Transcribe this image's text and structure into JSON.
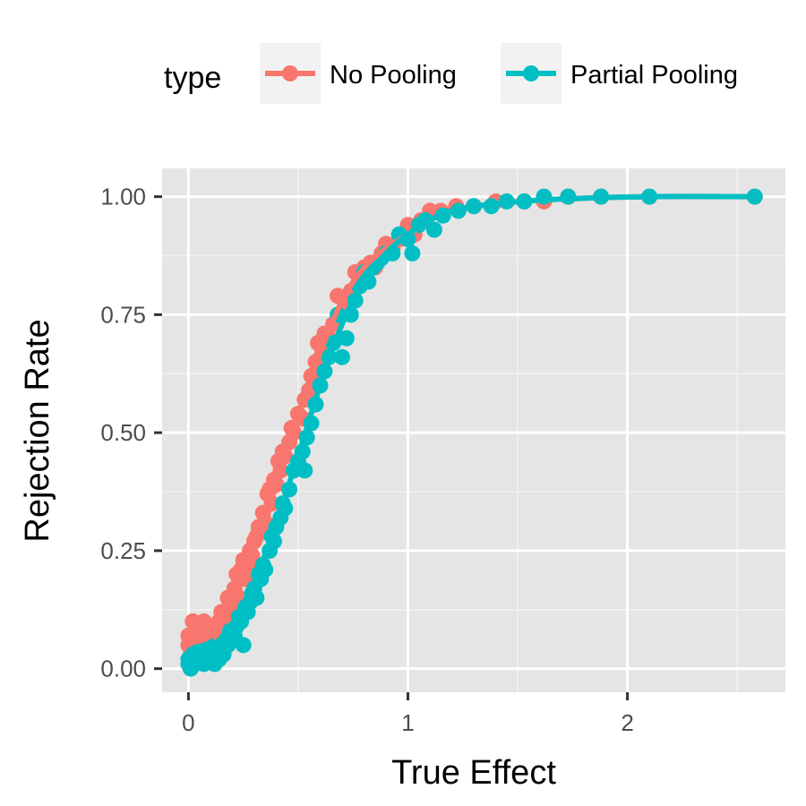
{
  "chart_data": {
    "type": "scatter",
    "xlabel": "True Effect",
    "ylabel": "Rejection Rate",
    "xlim": [
      -0.12,
      2.72
    ],
    "ylim": [
      -0.05,
      1.06
    ],
    "xticks": [
      0,
      1,
      2
    ],
    "xtick_labels": [
      "0",
      "1",
      "2"
    ],
    "yticks": [
      0,
      0.25,
      0.5,
      0.75,
      1
    ],
    "ytick_labels": [
      "0.00",
      "0.25",
      "0.50",
      "0.75",
      "1.00"
    ],
    "grid": true,
    "legend": {
      "title": "type",
      "position": "top",
      "entries": [
        "No Pooling",
        "Partial Pooling"
      ]
    },
    "series": [
      {
        "name": "No Pooling",
        "color": "#F8766D",
        "points": [
          [
            0,
            0.05
          ],
          [
            0,
            0.07
          ],
          [
            0.01,
            0.03
          ],
          [
            0.02,
            0.06
          ],
          [
            0.02,
            0.1
          ],
          [
            0.03,
            0.04
          ],
          [
            0.04,
            0.08
          ],
          [
            0.05,
            0.07
          ],
          [
            0.06,
            0.05
          ],
          [
            0.07,
            0.1
          ],
          [
            0.08,
            0.06
          ],
          [
            0.09,
            0.08
          ],
          [
            0.1,
            0.09
          ],
          [
            0.11,
            0.05
          ],
          [
            0.12,
            0.08
          ],
          [
            0.13,
            0.07
          ],
          [
            0.14,
            0.1
          ],
          [
            0.15,
            0.12
          ],
          [
            0.17,
            0.11
          ],
          [
            0.18,
            0.15
          ],
          [
            0.19,
            0.13
          ],
          [
            0.2,
            0.12
          ],
          [
            0.21,
            0.17
          ],
          [
            0.22,
            0.2
          ],
          [
            0.23,
            0.15
          ],
          [
            0.24,
            0.21
          ],
          [
            0.25,
            0.23
          ],
          [
            0.26,
            0.19
          ],
          [
            0.27,
            0.22
          ],
          [
            0.28,
            0.25
          ],
          [
            0.29,
            0.24
          ],
          [
            0.3,
            0.27
          ],
          [
            0.31,
            0.28
          ],
          [
            0.32,
            0.3
          ],
          [
            0.33,
            0.29
          ],
          [
            0.34,
            0.33
          ],
          [
            0.35,
            0.31
          ],
          [
            0.36,
            0.37
          ],
          [
            0.37,
            0.38
          ],
          [
            0.38,
            0.35
          ],
          [
            0.39,
            0.4
          ],
          [
            0.4,
            0.39
          ],
          [
            0.41,
            0.44
          ],
          [
            0.42,
            0.42
          ],
          [
            0.43,
            0.46
          ],
          [
            0.44,
            0.45
          ],
          [
            0.46,
            0.48
          ],
          [
            0.47,
            0.51
          ],
          [
            0.48,
            0.5
          ],
          [
            0.5,
            0.54
          ],
          [
            0.52,
            0.53
          ],
          [
            0.53,
            0.57
          ],
          [
            0.55,
            0.59
          ],
          [
            0.56,
            0.62
          ],
          [
            0.58,
            0.65
          ],
          [
            0.59,
            0.69
          ],
          [
            0.61,
            0.67
          ],
          [
            0.62,
            0.71
          ],
          [
            0.64,
            0.7
          ],
          [
            0.66,
            0.73
          ],
          [
            0.68,
            0.79
          ],
          [
            0.7,
            0.75
          ],
          [
            0.72,
            0.78
          ],
          [
            0.74,
            0.8
          ],
          [
            0.76,
            0.84
          ],
          [
            0.78,
            0.82
          ],
          [
            0.8,
            0.85
          ],
          [
            0.83,
            0.86
          ],
          [
            0.85,
            0.85
          ],
          [
            0.88,
            0.88
          ],
          [
            0.9,
            0.9
          ],
          [
            0.93,
            0.89
          ],
          [
            0.96,
            0.91
          ],
          [
            1,
            0.94
          ],
          [
            1.03,
            0.92
          ],
          [
            1.06,
            0.95
          ],
          [
            1.1,
            0.97
          ],
          [
            1.15,
            0.97
          ],
          [
            1.22,
            0.98
          ],
          [
            1.3,
            0.98
          ],
          [
            1.4,
            0.99
          ],
          [
            1.53,
            0.99
          ],
          [
            1.62,
            0.99
          ],
          [
            1.73,
            1
          ],
          [
            1.88,
            1
          ],
          [
            2.1,
            1
          ],
          [
            2.58,
            1
          ]
        ]
      },
      {
        "name": "Partial Pooling",
        "color": "#00BFC4",
        "points": [
          [
            0,
            0.01
          ],
          [
            0,
            0.02
          ],
          [
            0.01,
            0
          ],
          [
            0.02,
            0.03
          ],
          [
            0.03,
            0.01
          ],
          [
            0.04,
            0.02
          ],
          [
            0.05,
            0.04
          ],
          [
            0.06,
            0.02
          ],
          [
            0.07,
            0.01
          ],
          [
            0.08,
            0.03
          ],
          [
            0.09,
            0.05
          ],
          [
            0.1,
            0.02
          ],
          [
            0.11,
            0.03
          ],
          [
            0.12,
            0.01
          ],
          [
            0.13,
            0.04
          ],
          [
            0.14,
            0.02
          ],
          [
            0.15,
            0.05
          ],
          [
            0.16,
            0.03
          ],
          [
            0.17,
            0.06
          ],
          [
            0.18,
            0.05
          ],
          [
            0.19,
            0.08
          ],
          [
            0.2,
            0.06
          ],
          [
            0.21,
            0.07
          ],
          [
            0.22,
            0.09
          ],
          [
            0.23,
            0.11
          ],
          [
            0.24,
            0.1
          ],
          [
            0.25,
            0.05
          ],
          [
            0.26,
            0.13
          ],
          [
            0.27,
            0.12
          ],
          [
            0.28,
            0.14
          ],
          [
            0.29,
            0.16
          ],
          [
            0.3,
            0.17
          ],
          [
            0.31,
            0.15
          ],
          [
            0.32,
            0.2
          ],
          [
            0.33,
            0.19
          ],
          [
            0.34,
            0.22
          ],
          [
            0.35,
            0.21
          ],
          [
            0.37,
            0.25
          ],
          [
            0.38,
            0.28
          ],
          [
            0.39,
            0.27
          ],
          [
            0.4,
            0.3
          ],
          [
            0.42,
            0.32
          ],
          [
            0.43,
            0.35
          ],
          [
            0.44,
            0.34
          ],
          [
            0.46,
            0.38
          ],
          [
            0.48,
            0.42
          ],
          [
            0.5,
            0.44
          ],
          [
            0.52,
            0.46
          ],
          [
            0.53,
            0.42
          ],
          [
            0.54,
            0.49
          ],
          [
            0.56,
            0.52
          ],
          [
            0.58,
            0.56
          ],
          [
            0.6,
            0.6
          ],
          [
            0.62,
            0.63
          ],
          [
            0.64,
            0.66
          ],
          [
            0.66,
            0.69
          ],
          [
            0.68,
            0.75
          ],
          [
            0.7,
            0.66
          ],
          [
            0.72,
            0.7
          ],
          [
            0.74,
            0.75
          ],
          [
            0.76,
            0.78
          ],
          [
            0.78,
            0.81
          ],
          [
            0.8,
            0.84
          ],
          [
            0.82,
            0.82
          ],
          [
            0.84,
            0.85
          ],
          [
            0.86,
            0.86
          ],
          [
            0.88,
            0.87
          ],
          [
            0.9,
            0.88
          ],
          [
            0.93,
            0.88
          ],
          [
            0.96,
            0.92
          ],
          [
            1,
            0.91
          ],
          [
            1.02,
            0.88
          ],
          [
            1.05,
            0.94
          ],
          [
            1.08,
            0.95
          ],
          [
            1.12,
            0.93
          ],
          [
            1.16,
            0.96
          ],
          [
            1.23,
            0.97
          ],
          [
            1.3,
            0.98
          ],
          [
            1.38,
            0.98
          ],
          [
            1.45,
            0.99
          ],
          [
            1.53,
            0.99
          ],
          [
            1.62,
            1
          ],
          [
            1.73,
            1
          ],
          [
            1.88,
            1
          ],
          [
            2.1,
            1
          ],
          [
            2.58,
            1
          ]
        ]
      }
    ],
    "smooth_curves": [
      {
        "series": "No Pooling",
        "color": "#F8766D",
        "points": [
          [
            0,
            0.055
          ],
          [
            0.1,
            0.07
          ],
          [
            0.2,
            0.14
          ],
          [
            0.3,
            0.26
          ],
          [
            0.4,
            0.4
          ],
          [
            0.5,
            0.54
          ],
          [
            0.6,
            0.67
          ],
          [
            0.7,
            0.78
          ],
          [
            0.8,
            0.85
          ],
          [
            0.9,
            0.89
          ],
          [
            1,
            0.92
          ],
          [
            1.1,
            0.95
          ],
          [
            1.2,
            0.97
          ],
          [
            1.4,
            0.985
          ],
          [
            1.7,
            0.995
          ],
          [
            2.1,
            1
          ],
          [
            2.58,
            1
          ]
        ]
      },
      {
        "series": "Partial Pooling",
        "color": "#00BFC4",
        "points": [
          [
            0,
            0.015
          ],
          [
            0.1,
            0.03
          ],
          [
            0.2,
            0.08
          ],
          [
            0.3,
            0.18
          ],
          [
            0.4,
            0.31
          ],
          [
            0.5,
            0.45
          ],
          [
            0.6,
            0.6
          ],
          [
            0.7,
            0.73
          ],
          [
            0.8,
            0.82
          ],
          [
            0.9,
            0.88
          ],
          [
            1,
            0.92
          ],
          [
            1.1,
            0.95
          ],
          [
            1.2,
            0.97
          ],
          [
            1.4,
            0.985
          ],
          [
            1.7,
            0.995
          ],
          [
            2.1,
            1
          ],
          [
            2.58,
            1
          ]
        ]
      }
    ]
  }
}
